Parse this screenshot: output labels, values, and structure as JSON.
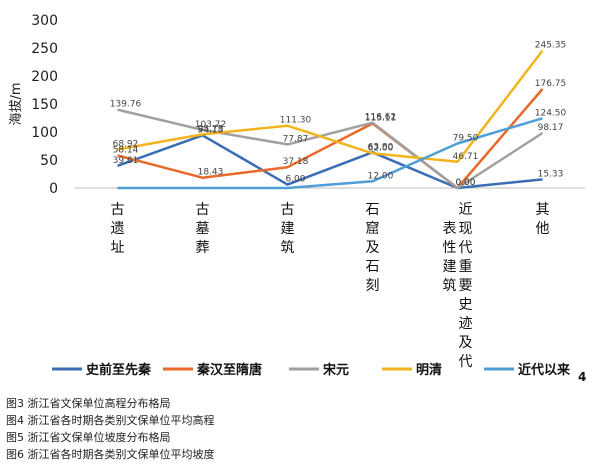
{
  "chart_data": {
    "type": "line",
    "ylabel": "海拔/m",
    "ylim": [
      0,
      300
    ],
    "yticks": [
      0,
      50,
      100,
      150,
      200,
      250,
      300
    ],
    "categories": [
      "古遗址",
      "古墓葬",
      "古建筑",
      "石窟及石刻",
      "近现代重要史迹及代表性建筑",
      "其他"
    ],
    "series": [
      {
        "name": "史前至先秦",
        "color": "#3a6db5",
        "values": [
          39.61,
          94.18,
          6.0,
          63.8,
          0.0,
          15.33
        ],
        "labels": [
          "39.61",
          "94.18",
          "6.00",
          "63.80",
          "0.00",
          "15.33"
        ]
      },
      {
        "name": "秦汉至隋唐",
        "color": "#e8692a",
        "values": [
          58.14,
          18.43,
          37.18,
          115.11,
          0.0,
          176.75
        ],
        "labels": [
          "58.14",
          "18.43",
          "37.18",
          "115.11",
          "0.00",
          "176.75"
        ]
      },
      {
        "name": "宋元",
        "color": "#a0a0a0",
        "values": [
          139.76,
          103.72,
          77.87,
          116.62,
          0.0,
          98.17
        ],
        "labels": [
          "139.76",
          "103.72",
          "77.87",
          "116.62",
          "",
          "98.17"
        ]
      },
      {
        "name": "明清",
        "color": "#f2b41c",
        "values": [
          68.92,
          95.75,
          111.3,
          62.0,
          46.71,
          245.35
        ],
        "labels": [
          "68.92",
          "95.75",
          "111.30",
          "62.00",
          "46.71",
          "245.35"
        ]
      },
      {
        "name": "近代以来",
        "color": "#4f9fd6",
        "values": [
          0,
          0,
          0,
          12.0,
          79.5,
          124.5
        ],
        "labels": [
          "",
          "",
          "",
          "12.00",
          "79.50",
          "124.50"
        ]
      }
    ]
  },
  "page_number": "4",
  "captions": [
    "图3  浙江省文保单位高程分布格局",
    "图4  浙江省各时期各类别文保单位平均高程",
    "图5  浙江省文保单位坡度分布格局",
    "图6  浙江省各时期各类别文保单位平均坡度"
  ]
}
